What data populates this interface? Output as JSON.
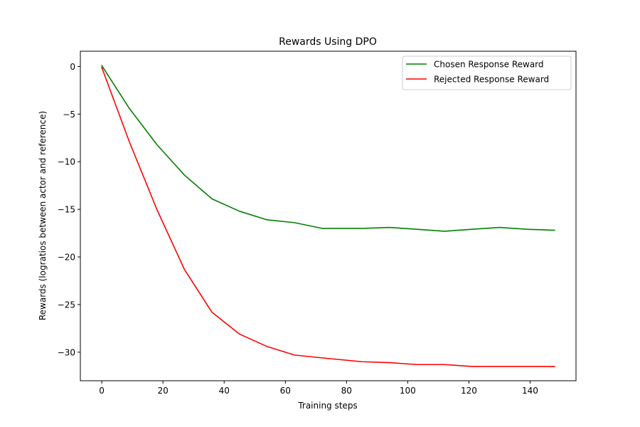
{
  "chart_data": {
    "type": "line",
    "title": "Rewards Using DPO",
    "xlabel": "Training steps",
    "ylabel": "Rewards (logratios between actor and reference)",
    "xlim": [
      -7,
      155
    ],
    "ylim": [
      -33,
      1.6
    ],
    "xticks": [
      0,
      20,
      40,
      60,
      80,
      100,
      120,
      140
    ],
    "yticks": [
      0,
      -5,
      -10,
      -15,
      -20,
      -25,
      -30
    ],
    "ytick_labels": [
      "0",
      "−5",
      "−10",
      "−15",
      "−20",
      "−25",
      "−30"
    ],
    "grid": false,
    "legend_position": "top-right",
    "series": [
      {
        "name": "Chosen Response Reward",
        "color": "#008000",
        "x": [
          0,
          9,
          18,
          27,
          36,
          45,
          54,
          63,
          72,
          85,
          94,
          103,
          112,
          121,
          130,
          139,
          148
        ],
        "y": [
          0.1,
          -4.4,
          -8.2,
          -11.4,
          -13.9,
          -15.2,
          -16.1,
          -16.4,
          -17.0,
          -17.0,
          -16.9,
          -17.1,
          -17.3,
          -17.1,
          -16.9,
          -17.1,
          -17.2
        ]
      },
      {
        "name": "Rejected Response Reward",
        "color": "#ff0000",
        "x": [
          0,
          9,
          18,
          27,
          36,
          45,
          54,
          63,
          72,
          85,
          94,
          103,
          112,
          121,
          130,
          139,
          148
        ],
        "y": [
          -0.1,
          -7.9,
          -15.0,
          -21.3,
          -25.8,
          -28.1,
          -29.4,
          -30.3,
          -30.6,
          -31.0,
          -31.1,
          -31.3,
          -31.3,
          -31.5,
          -31.5,
          -31.5,
          -31.5
        ]
      }
    ]
  }
}
